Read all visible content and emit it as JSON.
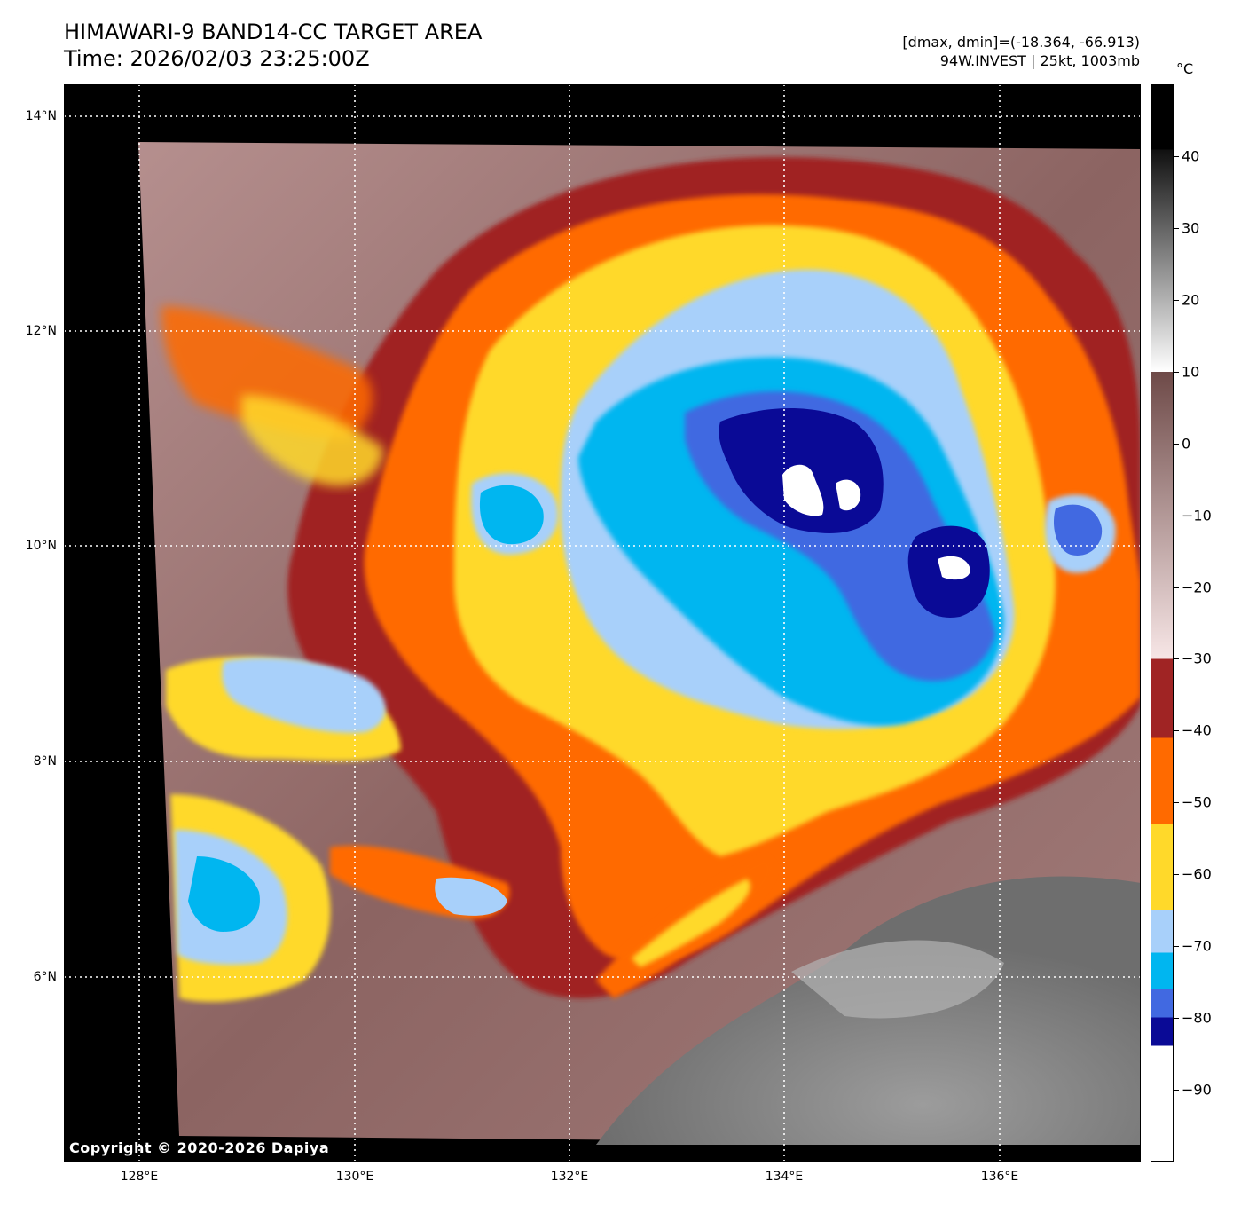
{
  "title": {
    "line1": "HIMAWARI-9 BAND14-CC TARGET AREA",
    "line2": "Time: 2026/02/03 23:25:00Z"
  },
  "info": {
    "line1": "[dmax, dmin]=(-18.364, -66.913)",
    "line2": "94W.INVEST | 25kt, 1003mb"
  },
  "map": {
    "lat_labels": [
      {
        "value": 14,
        "label": "14°N"
      },
      {
        "value": 12,
        "label": "12°N"
      },
      {
        "value": 10,
        "label": "10°N"
      },
      {
        "value": 8,
        "label": "8°N"
      },
      {
        "value": 6,
        "label": "6°N"
      }
    ],
    "lon_labels": [
      {
        "value": 128,
        "label": "128°E"
      },
      {
        "value": 130,
        "label": "130°E"
      },
      {
        "value": 132,
        "label": "132°E"
      },
      {
        "value": 134,
        "label": "134°E"
      },
      {
        "value": 136,
        "label": "136°E"
      }
    ],
    "lat_range": [
      4.35,
      14.3
    ],
    "lon_range": [
      127.3,
      137.3
    ],
    "copyright": "Copyright © 2020-2026 Dapiya"
  },
  "colorbar": {
    "unit": "°C",
    "range": [
      -100,
      50
    ],
    "ticks": [
      {
        "value": 40,
        "label": "40"
      },
      {
        "value": 30,
        "label": "30"
      },
      {
        "value": 20,
        "label": "20"
      },
      {
        "value": 10,
        "label": "10"
      },
      {
        "value": 0,
        "label": "0"
      },
      {
        "value": -10,
        "label": "−10"
      },
      {
        "value": -20,
        "label": "−20"
      },
      {
        "value": -30,
        "label": "−30"
      },
      {
        "value": -40,
        "label": "−40"
      },
      {
        "value": -50,
        "label": "−50"
      },
      {
        "value": -60,
        "label": "−60"
      },
      {
        "value": -70,
        "label": "−70"
      },
      {
        "value": -80,
        "label": "−80"
      },
      {
        "value": -90,
        "label": "−90"
      }
    ],
    "stops": [
      {
        "from": 50,
        "to": 41,
        "color": "#000000"
      },
      {
        "from": 41,
        "to": 10,
        "gradient": [
          "#101010",
          "#ffffff"
        ]
      },
      {
        "from": 10,
        "to": -30,
        "gradient": [
          "#6e4a48",
          "#f7e6e6"
        ]
      },
      {
        "from": -30,
        "to": -41,
        "color": "#a02424"
      },
      {
        "from": -41,
        "to": -53,
        "color": "#ff6a00"
      },
      {
        "from": -53,
        "to": -65,
        "color": "#ffd92a"
      },
      {
        "from": -65,
        "to": -71,
        "color": "#a8d0fa"
      },
      {
        "from": -71,
        "to": -76,
        "color": "#00b6f0"
      },
      {
        "from": -76,
        "to": -80,
        "color": "#4169e1"
      },
      {
        "from": -80,
        "to": -84,
        "color": "#0a0a96"
      },
      {
        "from": -84,
        "to": -100,
        "color": "#ffffff"
      }
    ]
  }
}
